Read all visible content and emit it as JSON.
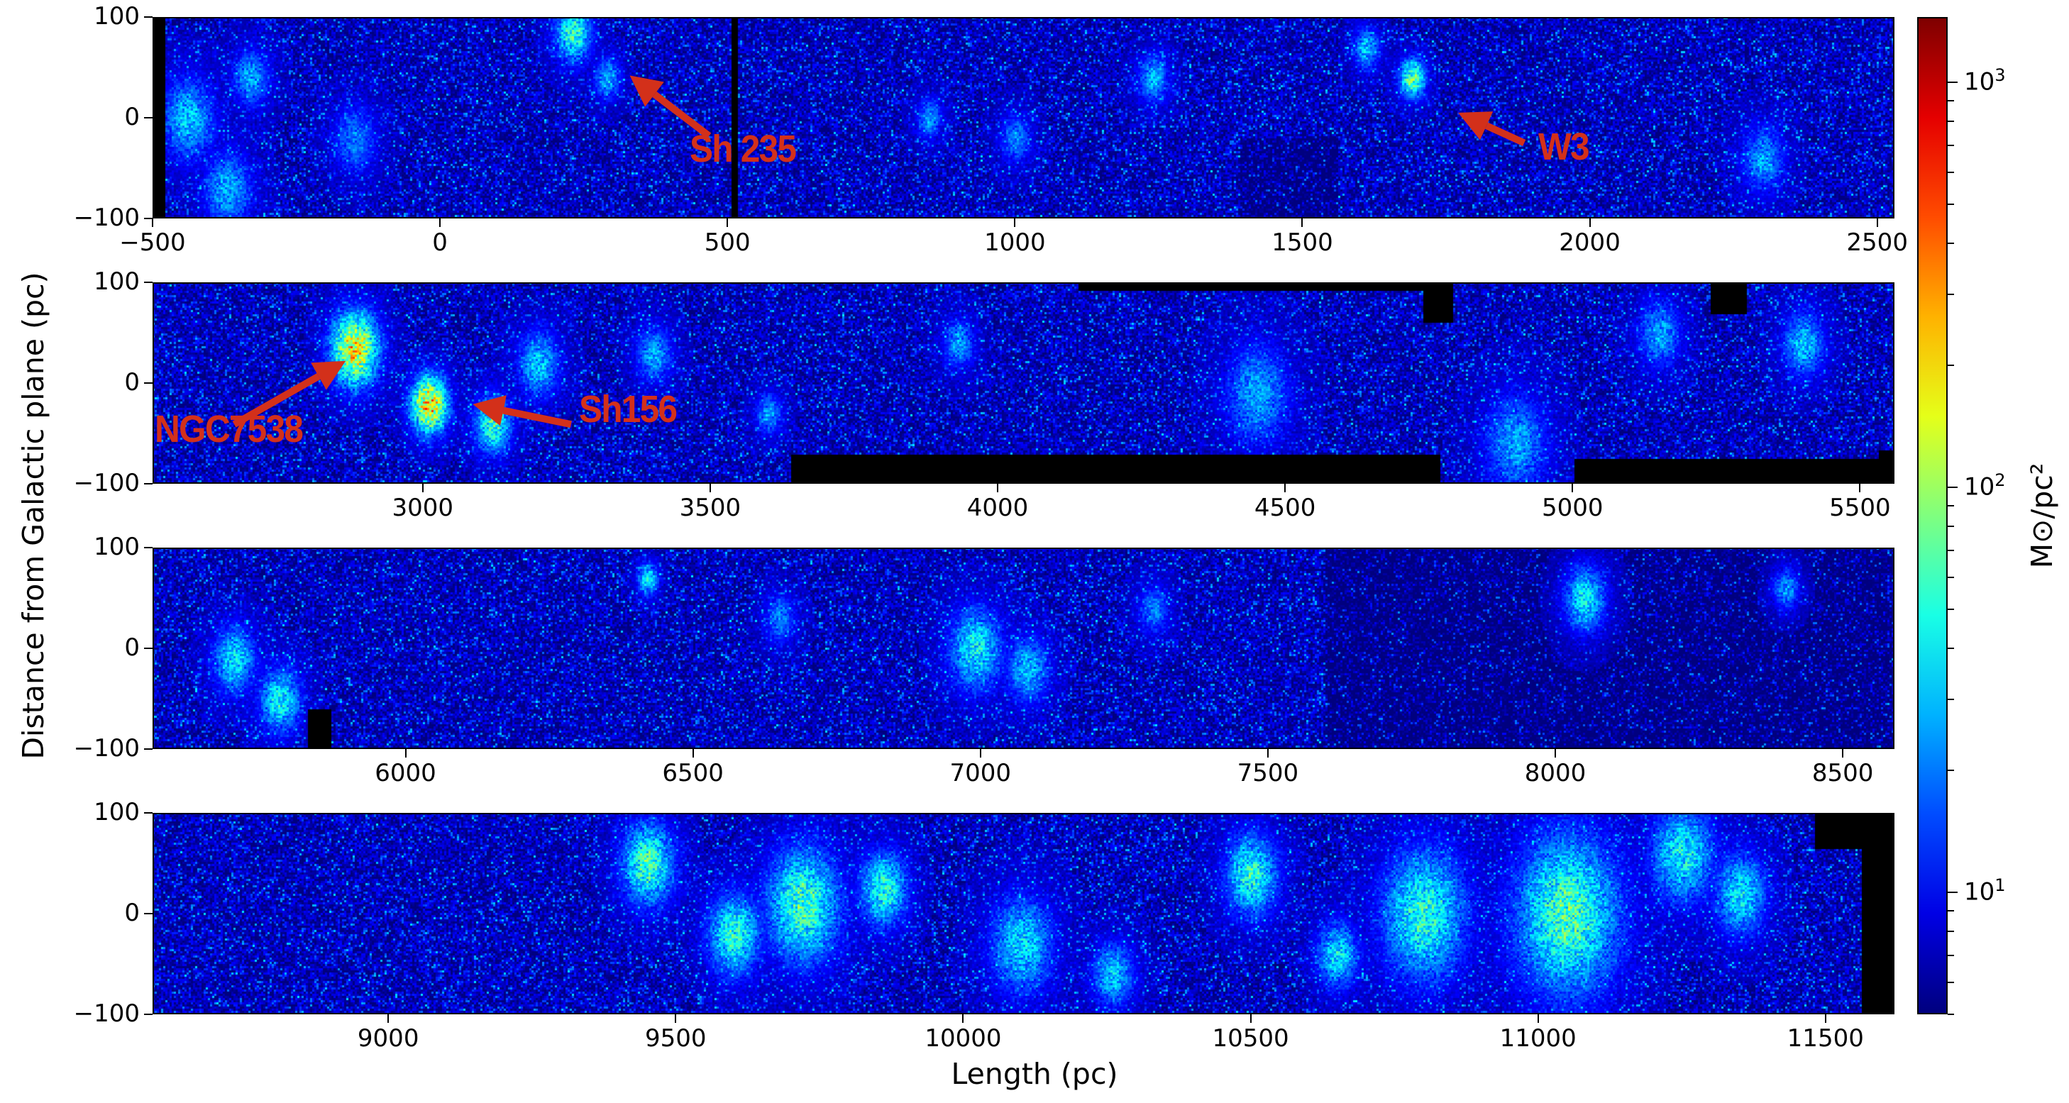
{
  "chart_data": {
    "type": "heatmap",
    "xlabel": "Length (pc)",
    "ylabel": "Distance from Galactic plane (pc)",
    "colorbar": {
      "label": "M⊙/pc²",
      "label_main": "M",
      "label_sub": "⊙",
      "label_rest": "/pc",
      "label_sup": "2",
      "scale": "log",
      "range": [
        5,
        1450
      ],
      "colormap": "jet",
      "major_ticks": [
        {
          "base": "10",
          "exp": "1",
          "value": 10
        },
        {
          "base": "10",
          "exp": "2",
          "value": 100
        },
        {
          "base": "10",
          "exp": "3",
          "value": 1000
        }
      ]
    },
    "panels": [
      {
        "xlim": [
          -500,
          2530
        ],
        "ylim": [
          -100,
          100
        ],
        "xticks": [
          -500,
          0,
          500,
          1000,
          1500,
          2000,
          2500
        ],
        "xtick_labels": [
          "−500",
          "0",
          "500",
          "1000",
          "1500",
          "2000",
          "2500"
        ],
        "yticks": [
          100,
          0,
          -100
        ],
        "ytick_labels": [
          "100",
          "0",
          "−100"
        ],
        "masks": [
          [
            -500,
            -478,
            -100,
            100
          ],
          [
            505,
            515,
            -100,
            100
          ]
        ],
        "dim_regions": [
          [
            1390,
            1560,
            -100,
            -20
          ]
        ],
        "clumps": [
          [
            -440,
            0,
            50,
            1.6
          ],
          [
            -370,
            -70,
            45,
            1.55
          ],
          [
            -330,
            40,
            35,
            1.5
          ],
          [
            -150,
            -20,
            40,
            1.4
          ],
          [
            230,
            85,
            35,
            1.9
          ],
          [
            290,
            40,
            25,
            1.55
          ],
          [
            850,
            0,
            25,
            1.45
          ],
          [
            1240,
            40,
            30,
            1.55
          ],
          [
            1690,
            40,
            25,
            2.05
          ],
          [
            1610,
            70,
            25,
            1.6
          ],
          [
            2300,
            -40,
            40,
            1.5
          ],
          [
            1000,
            -20,
            30,
            1.4
          ]
        ],
        "annotations": [
          {
            "text": "Sh 235",
            "tip": [
              330,
              42
            ],
            "tail": [
              468,
              -18
            ],
            "label_pos": [
              434,
              -30
            ]
          },
          {
            "text": "W3",
            "tip": [
              1771,
              5
            ],
            "tail": [
              1886,
              -25
            ],
            "label_pos": [
              1910,
              -28
            ]
          }
        ]
      },
      {
        "xlim": [
          2530,
          5560
        ],
        "ylim": [
          -100,
          100
        ],
        "xticks": [
          3000,
          3500,
          4000,
          4500,
          5000,
          5500
        ],
        "xtick_labels": [
          "3000",
          "3500",
          "4000",
          "4500",
          "5000",
          "5500"
        ],
        "yticks": [
          100,
          0,
          -100
        ],
        "ytick_labels": [
          "100",
          "0",
          "−100"
        ],
        "masks": [
          [
            3640,
            4770,
            -100,
            -70
          ],
          [
            4140,
            4750,
            93,
            100
          ],
          [
            4740,
            4790,
            60,
            100
          ],
          [
            5240,
            5300,
            70,
            100
          ],
          [
            5000,
            5540,
            -100,
            -75
          ],
          [
            5530,
            5560,
            -100,
            -65
          ]
        ],
        "dim_regions": [],
        "clumps": [
          [
            2880,
            35,
            45,
            2.5
          ],
          [
            3010,
            -20,
            35,
            2.6
          ],
          [
            3120,
            -40,
            35,
            1.9
          ],
          [
            3200,
            20,
            40,
            1.6
          ],
          [
            3400,
            30,
            35,
            1.5
          ],
          [
            3600,
            -30,
            25,
            1.5
          ],
          [
            3930,
            40,
            30,
            1.5
          ],
          [
            4450,
            -10,
            60,
            1.5
          ],
          [
            4900,
            -60,
            60,
            1.5
          ],
          [
            5150,
            50,
            40,
            1.5
          ],
          [
            5400,
            40,
            40,
            1.6
          ]
        ],
        "annotations": [
          {
            "text": "NGC7538",
            "tip": [
              2866,
              22
            ],
            "tail": [
              2672,
              -41
            ],
            "label_pos": [
              2534,
              -45
            ]
          },
          {
            "text": "Sh156",
            "tip": [
              3087,
              -21
            ],
            "tail": [
              3258,
              -41
            ],
            "label_pos": [
              3272,
              -25
            ]
          }
        ]
      },
      {
        "xlim": [
          5560,
          8590
        ],
        "ylim": [
          -100,
          100
        ],
        "xticks": [
          6000,
          6500,
          7000,
          7500,
          8000,
          8500
        ],
        "xtick_labels": [
          "6000",
          "6500",
          "7000",
          "7500",
          "8000",
          "8500"
        ],
        "yticks": [
          100,
          0,
          -100
        ],
        "ytick_labels": [
          "100",
          "0",
          "−100"
        ],
        "masks": [
          [
            5830,
            5870,
            -100,
            -60
          ]
        ],
        "dim_regions": [
          [
            7600,
            8590,
            -100,
            100
          ]
        ],
        "clumps": [
          [
            5700,
            -10,
            40,
            1.7
          ],
          [
            5780,
            -50,
            40,
            1.75
          ],
          [
            6420,
            70,
            20,
            1.75
          ],
          [
            6650,
            30,
            30,
            1.4
          ],
          [
            6990,
            0,
            50,
            1.75
          ],
          [
            7080,
            -20,
            40,
            1.6
          ],
          [
            7300,
            40,
            30,
            1.4
          ],
          [
            8050,
            50,
            40,
            1.7
          ],
          [
            8400,
            60,
            25,
            1.5
          ]
        ],
        "annotations": []
      },
      {
        "xlim": [
          8590,
          11620
        ],
        "ylim": [
          -100,
          100
        ],
        "xticks": [
          9000,
          9500,
          10000,
          10500,
          11000,
          11500
        ],
        "xtick_labels": [
          "9000",
          "9500",
          "10000",
          "10500",
          "11000",
          "11500"
        ],
        "yticks": [
          100,
          0,
          -100
        ],
        "ytick_labels": [
          "100",
          "0",
          "−100"
        ],
        "masks": [
          [
            11480,
            11620,
            65,
            100
          ],
          [
            11560,
            11620,
            -100,
            65
          ]
        ],
        "dim_regions": [],
        "clumps": [
          [
            9450,
            50,
            50,
            1.95
          ],
          [
            9600,
            -20,
            50,
            1.85
          ],
          [
            9720,
            10,
            70,
            1.95
          ],
          [
            9860,
            25,
            45,
            1.85
          ],
          [
            10100,
            -30,
            60,
            1.65
          ],
          [
            10260,
            -60,
            40,
            1.6
          ],
          [
            10500,
            40,
            50,
            1.85
          ],
          [
            10650,
            -40,
            40,
            1.7
          ],
          [
            10800,
            0,
            80,
            1.85
          ],
          [
            11050,
            0,
            100,
            1.95
          ],
          [
            11250,
            60,
            60,
            1.75
          ],
          [
            11350,
            20,
            50,
            1.7
          ]
        ],
        "annotations": []
      }
    ]
  }
}
